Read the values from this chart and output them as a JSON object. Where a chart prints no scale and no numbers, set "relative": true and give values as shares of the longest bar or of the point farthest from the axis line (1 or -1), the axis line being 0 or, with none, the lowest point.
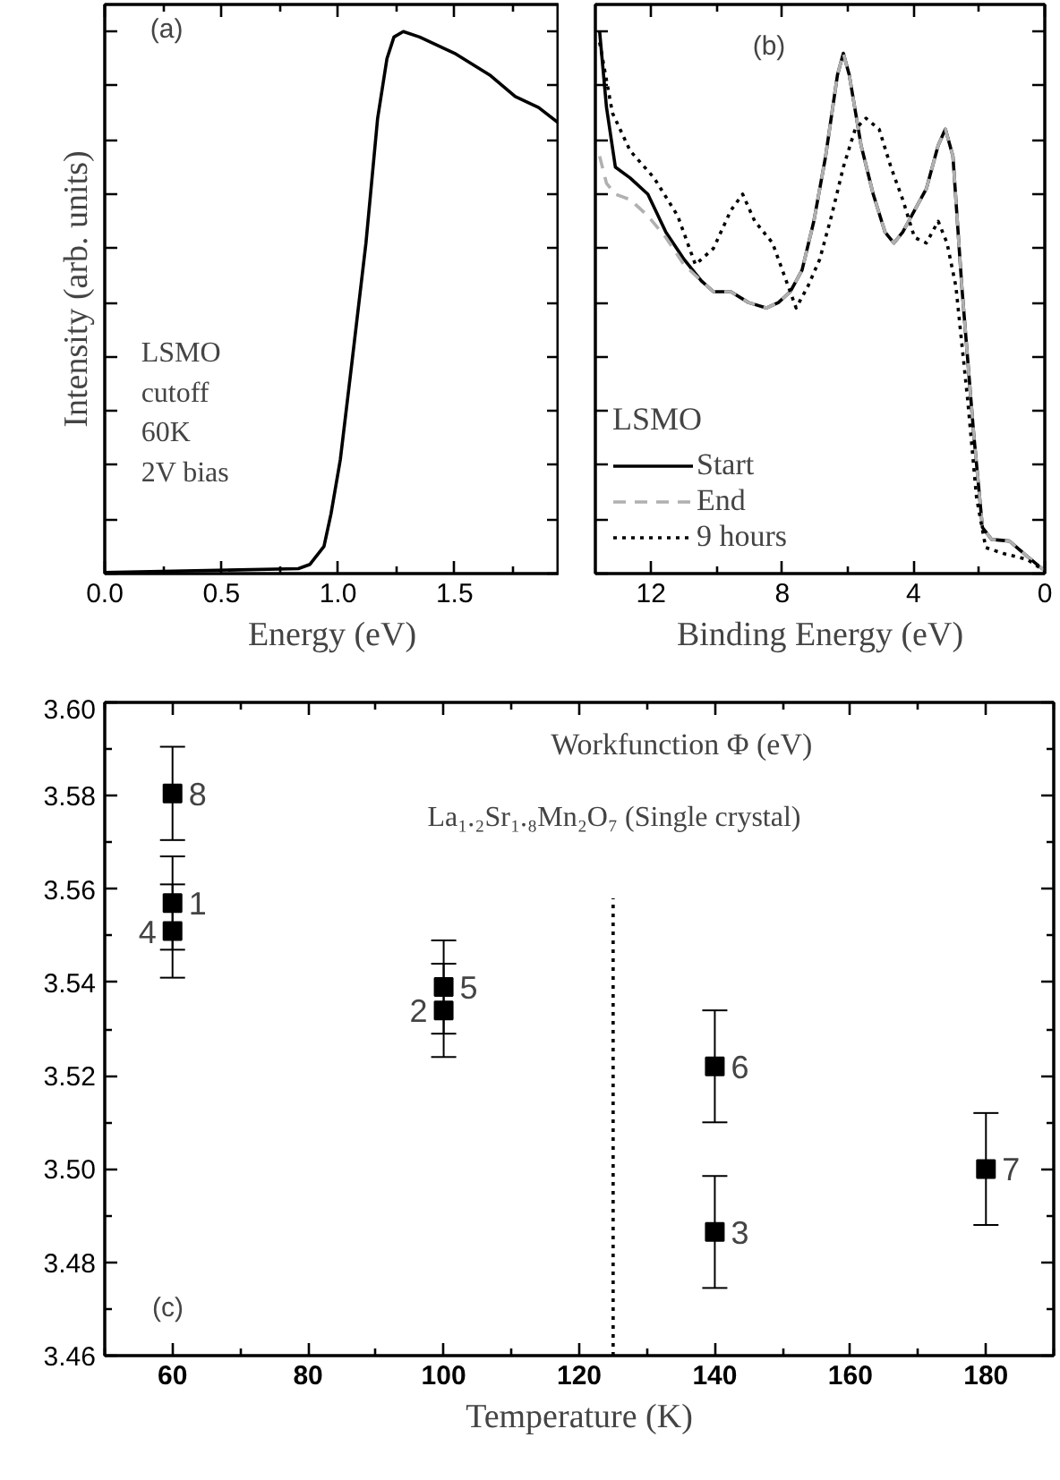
{
  "chart_data": [
    {
      "type": "line",
      "xlabel": "Energy (eV)",
      "ylabel": "Intensity (arb. units)",
      "relative": true,
      "xlim": [
        0,
        1.95
      ],
      "xticks": [
        {
          "value": 0,
          "label": "0.0"
        },
        0.5,
        {
          "value": 1,
          "label": "1.0"
        },
        1.5
      ],
      "tick_labels": "x",
      "line_style": "solid",
      "annotations": [
        "(a)",
        "LSMO",
        "cutoff",
        "60K",
        "2V bias"
      ],
      "series": [
        {
          "color": "#000000",
          "x": [
            0,
            0.83,
            0.88,
            0.94,
            0.97,
            1.01,
            1.06,
            1.12,
            1.17,
            1.21,
            1.24,
            1.28,
            1.35,
            1.5,
            1.65,
            1.76,
            1.86,
            1.95
          ],
          "values": [
            0.002,
            0.009,
            0.017,
            0.05,
            0.11,
            0.21,
            0.39,
            0.61,
            0.84,
            0.95,
            0.99,
            1.0,
            0.99,
            0.96,
            0.92,
            0.88,
            0.86,
            0.83
          ]
        }
      ]
    },
    {
      "type": "line",
      "xlabel": "Binding Energy (eV)",
      "relative": true,
      "xlim": [
        13.7,
        0
      ],
      "xticks": [
        12,
        8,
        4,
        0
      ],
      "tick_labels": "x",
      "legend": "bottom left",
      "legend_title": "LSMO",
      "annotations": [
        "(b)"
      ],
      "series": [
        {
          "name": "Start",
          "color": "#000000",
          "line_style": "solid",
          "x": [
            13.57,
            13.36,
            13.09,
            12.64,
            12.1,
            11.55,
            11.0,
            10.47,
            10.1,
            9.57,
            9.03,
            8.48,
            8.12,
            7.76,
            7.4,
            7.04,
            6.68,
            6.32,
            6.14,
            5.96,
            5.6,
            5.23,
            4.87,
            4.6,
            4.33,
            3.97,
            3.61,
            3.25,
            3.03,
            2.8,
            2.53,
            2.17,
            1.9,
            1.62,
            1.08,
            0.54,
            0
          ],
          "values": [
            1.0,
            0.86,
            0.75,
            0.73,
            0.7,
            0.63,
            0.58,
            0.54,
            0.52,
            0.52,
            0.5,
            0.49,
            0.5,
            0.52,
            0.56,
            0.65,
            0.77,
            0.92,
            0.96,
            0.92,
            0.79,
            0.7,
            0.63,
            0.61,
            0.63,
            0.67,
            0.71,
            0.79,
            0.82,
            0.77,
            0.53,
            0.26,
            0.085,
            0.063,
            0.06,
            0.032,
            0.005
          ]
        },
        {
          "name": "End",
          "color": "#b0b0b0",
          "line_style": "dashed",
          "x": [
            13.57,
            13.36,
            13.09,
            12.64,
            12.1,
            11.55,
            11.0,
            10.47,
            10.1,
            9.57,
            9.03,
            8.48,
            8.12,
            7.76,
            7.4,
            7.04,
            6.68,
            6.32,
            6.14,
            5.96,
            5.6,
            5.23,
            4.87,
            4.6,
            4.33,
            3.97,
            3.61,
            3.25,
            3.03,
            2.8,
            2.53,
            2.17,
            1.9,
            1.62,
            1.08,
            0.54,
            0
          ],
          "values": [
            0.77,
            0.72,
            0.7,
            0.69,
            0.66,
            0.62,
            0.57,
            0.54,
            0.52,
            0.52,
            0.5,
            0.49,
            0.5,
            0.52,
            0.56,
            0.65,
            0.77,
            0.92,
            0.96,
            0.92,
            0.79,
            0.7,
            0.63,
            0.61,
            0.63,
            0.67,
            0.71,
            0.79,
            0.82,
            0.77,
            0.53,
            0.26,
            0.085,
            0.063,
            0.06,
            0.032,
            0.005
          ]
        },
        {
          "name": "9 hours",
          "color": "#000000",
          "line_style": "dotted",
          "x": [
            13.57,
            13.18,
            12.64,
            11.91,
            11.19,
            10.65,
            10.1,
            9.57,
            9.21,
            8.84,
            8.3,
            7.94,
            7.58,
            7.22,
            6.86,
            6.5,
            6.14,
            5.78,
            5.45,
            5.05,
            4.69,
            4.33,
            3.97,
            3.61,
            3.25,
            2.98,
            2.71,
            2.35,
            2.08,
            1.8,
            1.26,
            0.54,
            0
          ],
          "values": [
            0.98,
            0.85,
            0.78,
            0.73,
            0.66,
            0.57,
            0.6,
            0.67,
            0.7,
            0.65,
            0.61,
            0.55,
            0.49,
            0.53,
            0.58,
            0.66,
            0.75,
            0.82,
            0.84,
            0.82,
            0.75,
            0.69,
            0.62,
            0.61,
            0.65,
            0.61,
            0.53,
            0.32,
            0.14,
            0.048,
            0.037,
            0.026,
            0.005
          ]
        }
      ]
    },
    {
      "type": "scatter",
      "xlabel": "Temperature (K)",
      "xlim": [
        50,
        190
      ],
      "xticks": [
        60,
        80,
        100,
        120,
        140,
        160,
        180
      ],
      "ylim": [
        3.46,
        3.6
      ],
      "yticks": [
        3.46,
        3.48,
        {
          "value": 3.5,
          "label": "3.50"
        },
        3.52,
        3.54,
        3.56,
        3.58,
        {
          "value": 3.6,
          "label": "3.60"
        }
      ],
      "marker": "square",
      "ref_lines": [
        {
          "axis": "x",
          "value": 125,
          "line_style": "dotted",
          "color": "#000000"
        }
      ],
      "annotations": [
        "Workfunction Φ (eV)",
        "La₁.₂Sr₁.₈Mn₂O₇    (Single crystal)",
        "(c)",
        {
          "text": "8",
          "x": 60,
          "y": 3.5805
        },
        {
          "text": "1",
          "x": 60,
          "y": 3.557
        },
        {
          "text": "4",
          "x": 60,
          "y": 3.551
        },
        {
          "text": "5",
          "x": 100,
          "y": 3.539
        },
        {
          "text": "2",
          "x": 100,
          "y": 3.534
        },
        {
          "text": "6",
          "x": 140,
          "y": 3.522
        },
        {
          "text": "3",
          "x": 140,
          "y": 3.4865
        },
        {
          "text": "7",
          "x": 180,
          "y": 3.5
        }
      ],
      "series": [
        {
          "color": "#000000",
          "x": [
            60,
            60,
            60,
            100,
            100,
            140,
            140,
            180
          ],
          "values": [
            3.5805,
            3.557,
            3.551,
            3.539,
            3.534,
            3.522,
            3.4865,
            3.5
          ],
          "errors": [
            [
              3.5705,
              3.5905
            ],
            [
              3.547,
              3.567
            ],
            [
              3.541,
              3.561
            ],
            [
              3.529,
              3.549
            ],
            [
              3.524,
              3.544
            ],
            [
              3.51,
              3.534
            ],
            [
              3.4745,
              3.4985
            ],
            [
              3.488,
              3.512
            ]
          ]
        }
      ]
    }
  ]
}
